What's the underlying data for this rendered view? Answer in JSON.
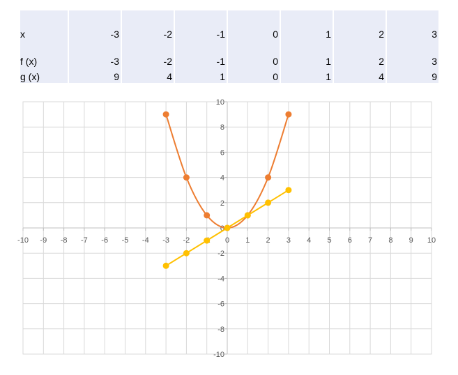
{
  "table": {
    "x_label": "x",
    "f_label": "f (x)",
    "g_label": "g (x)",
    "x": [
      "-3",
      "-2",
      "-1",
      "0",
      "1",
      "2",
      "3"
    ],
    "f": [
      "-3",
      "-2",
      "-1",
      "0",
      "1",
      "2",
      "3"
    ],
    "g": [
      "9",
      "4",
      "1",
      "0",
      "1",
      "4",
      "9"
    ]
  },
  "chart_data": {
    "type": "scatter",
    "title": "",
    "xlabel": "",
    "ylabel": "",
    "xlim": [
      -10,
      10
    ],
    "ylim": [
      -10,
      10
    ],
    "x_ticks": [
      -10,
      -9,
      -8,
      -7,
      -6,
      -5,
      -4,
      -3,
      -2,
      -1,
      0,
      1,
      2,
      3,
      4,
      5,
      6,
      7,
      8,
      9,
      10
    ],
    "y_ticks": [
      -10,
      -8,
      -6,
      -4,
      -2,
      0,
      2,
      4,
      6,
      8,
      10
    ],
    "grid": true,
    "legend": "none",
    "series": [
      {
        "x": [
          -3,
          -2,
          -1,
          0,
          1,
          2,
          3
        ],
        "values": [
          9,
          4,
          1,
          0,
          1,
          4,
          9
        ],
        "color": "#ed7d31",
        "smooth": true
      },
      {
        "x": [
          -3,
          -2,
          -1,
          0,
          1,
          2,
          3
        ],
        "values": [
          -3,
          -2,
          -1,
          0,
          1,
          2,
          3
        ],
        "color": "#ffc000",
        "smooth": false
      }
    ]
  }
}
